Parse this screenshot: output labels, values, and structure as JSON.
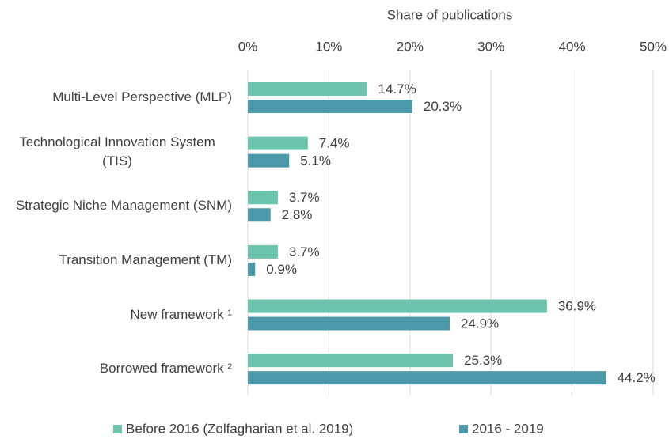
{
  "chart_data": {
    "type": "bar",
    "orientation": "horizontal",
    "x_axis_label": "Share of publications",
    "categories": [
      "Multi-Level Perspective (MLP)",
      "Technological Innovation System (TIS)",
      "Strategic Niche Management (SNM)",
      "Transition Management (TM)",
      "New framework ¹",
      "Borrowed framework ²"
    ],
    "series": [
      {
        "name": "Before 2016 (Zolfagharian et al. 2019)",
        "color": "#6cc4ad",
        "values": [
          14.7,
          7.4,
          3.7,
          3.7,
          36.9,
          25.3
        ],
        "value_labels": [
          "14.7%",
          "7.4%",
          "3.7%",
          "3.7%",
          "36.9%",
          "25.3%"
        ]
      },
      {
        "name": "2016 - 2019",
        "color": "#4a98a8",
        "values": [
          20.3,
          5.1,
          2.8,
          0.9,
          24.9,
          44.2
        ],
        "value_labels": [
          "20.3%",
          "5.1%",
          "2.8%",
          "0.9%",
          "24.9%",
          "44.2%"
        ]
      }
    ],
    "xlim": [
      0,
      50
    ],
    "xticks": [
      {
        "value": 0,
        "label": "0%"
      },
      {
        "value": 10,
        "label": "10%"
      },
      {
        "value": 20,
        "label": "20%"
      },
      {
        "value": 30,
        "label": "30%"
      },
      {
        "value": 40,
        "label": "40%"
      },
      {
        "value": 50,
        "label": "50%"
      }
    ],
    "grid": true,
    "legend": "bottom"
  }
}
